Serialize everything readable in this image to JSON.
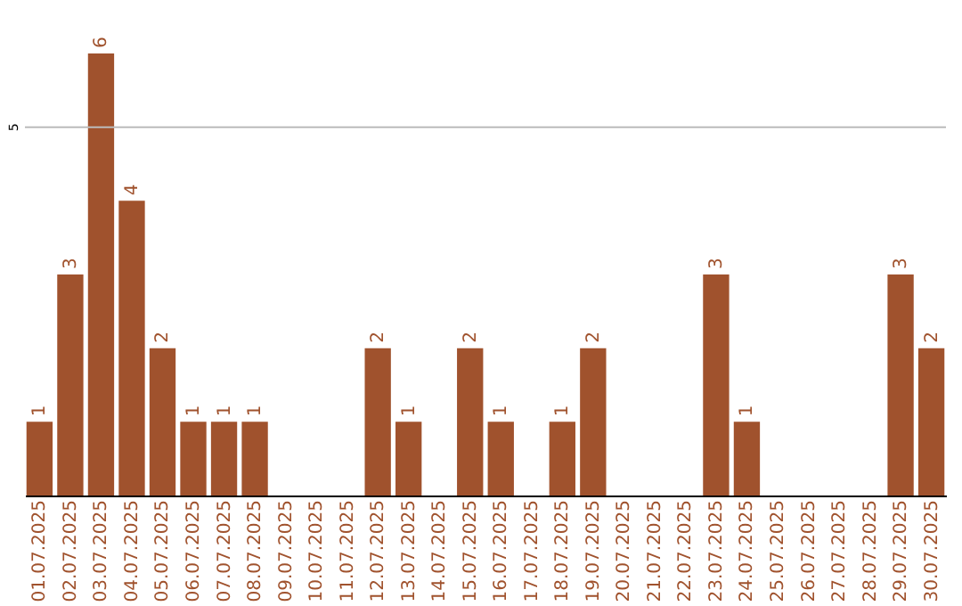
{
  "chart_data": {
    "type": "bar",
    "categories": [
      "01.07.2025",
      "02.07.2025",
      "03.07.2025",
      "04.07.2025",
      "05.07.2025",
      "06.07.2025",
      "07.07.2025",
      "08.07.2025",
      "09.07.2025",
      "10.07.2025",
      "11.07.2025",
      "12.07.2025",
      "13.07.2025",
      "14.07.2025",
      "15.07.2025",
      "16.07.2025",
      "17.07.2025",
      "18.07.2025",
      "19.07.2025",
      "20.07.2025",
      "21.07.2025",
      "22.07.2025",
      "23.07.2025",
      "24.07.2025",
      "25.07.2025",
      "26.07.2025",
      "27.07.2025",
      "28.07.2025",
      "29.07.2025",
      "30.07.2025"
    ],
    "values": [
      1,
      3,
      6,
      4,
      2,
      1,
      1,
      1,
      0,
      0,
      0,
      2,
      1,
      0,
      2,
      1,
      0,
      1,
      2,
      0,
      0,
      0,
      3,
      1,
      0,
      0,
      0,
      0,
      3,
      2
    ],
    "value_labels": [
      "1",
      "3",
      "6",
      "4",
      "2",
      "1",
      "1",
      "1",
      null,
      null,
      null,
      "2",
      "1",
      null,
      "2",
      "1",
      null,
      "1",
      "2",
      null,
      null,
      null,
      "3",
      "1",
      null,
      null,
      null,
      null,
      "3",
      "2"
    ],
    "color": "#a0522d",
    "ref_lines": [
      {
        "axis": "y",
        "value": 5,
        "label": "5",
        "color": "#bbbbbb"
      }
    ]
  }
}
